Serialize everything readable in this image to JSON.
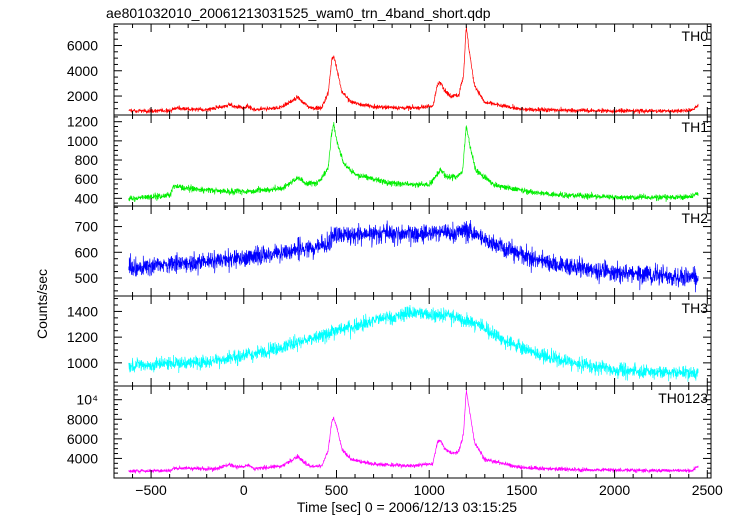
{
  "chart_data": {
    "type": "line",
    "title": "ae801032010_20061213031525_wam0_trn_4band_short.qdp",
    "xlabel": "Time [sec] 0 = 2006/12/13 03:15:25",
    "ylabel": "Counts/sec",
    "xlim": [
      -700,
      2520
    ],
    "xticks": [
      -500,
      0,
      500,
      1000,
      1500,
      2000,
      2500
    ],
    "x_start": -620,
    "x_end": 2450,
    "grid": false,
    "panels": [
      {
        "name": "TH0",
        "color": "#ff0000",
        "ylim": [
          500,
          7700
        ],
        "yticks": [
          2000,
          4000,
          6000
        ],
        "ytick_labels": [
          "2000",
          "4000",
          "6000"
        ],
        "noise": 120,
        "profile": [
          [
            -620,
            800
          ],
          [
            -400,
            850
          ],
          [
            -360,
            1050
          ],
          [
            -200,
            900
          ],
          [
            -80,
            1300
          ],
          [
            -40,
            1150
          ],
          [
            0,
            1050
          ],
          [
            20,
            1200
          ],
          [
            60,
            900
          ],
          [
            200,
            1100
          ],
          [
            260,
            1600
          ],
          [
            290,
            1900
          ],
          [
            320,
            1500
          ],
          [
            360,
            1050
          ],
          [
            420,
            1050
          ],
          [
            455,
            2200
          ],
          [
            475,
            4900
          ],
          [
            485,
            5100
          ],
          [
            500,
            4300
          ],
          [
            530,
            2300
          ],
          [
            580,
            1500
          ],
          [
            700,
            1150
          ],
          [
            900,
            1050
          ],
          [
            1020,
            1200
          ],
          [
            1045,
            2900
          ],
          [
            1060,
            3100
          ],
          [
            1085,
            2400
          ],
          [
            1120,
            1950
          ],
          [
            1160,
            2100
          ],
          [
            1185,
            3600
          ],
          [
            1200,
            7500
          ],
          [
            1215,
            5700
          ],
          [
            1245,
            2800
          ],
          [
            1300,
            1500
          ],
          [
            1500,
            950
          ],
          [
            1800,
            850
          ],
          [
            2200,
            820
          ],
          [
            2420,
            850
          ],
          [
            2450,
            1300
          ]
        ]
      },
      {
        "name": "TH1",
        "color": "#00ee00",
        "ylim": [
          320,
          1270
        ],
        "yticks": [
          400,
          600,
          800,
          1000,
          1200
        ],
        "ytick_labels": [
          "400",
          "600",
          "800",
          "1000",
          "1200"
        ],
        "noise": 22,
        "profile": [
          [
            -620,
            400
          ],
          [
            -400,
            430
          ],
          [
            -380,
            530
          ],
          [
            -300,
            500
          ],
          [
            -100,
            470
          ],
          [
            0,
            470
          ],
          [
            200,
            500
          ],
          [
            260,
            570
          ],
          [
            290,
            620
          ],
          [
            330,
            560
          ],
          [
            400,
            560
          ],
          [
            455,
            720
          ],
          [
            475,
            1100
          ],
          [
            485,
            1170
          ],
          [
            500,
            1010
          ],
          [
            540,
            760
          ],
          [
            600,
            650
          ],
          [
            800,
            560
          ],
          [
            1000,
            540
          ],
          [
            1040,
            640
          ],
          [
            1060,
            700
          ],
          [
            1090,
            630
          ],
          [
            1150,
            620
          ],
          [
            1180,
            680
          ],
          [
            1200,
            1160
          ],
          [
            1215,
            990
          ],
          [
            1250,
            700
          ],
          [
            1350,
            540
          ],
          [
            1600,
            450
          ],
          [
            2000,
            410
          ],
          [
            2400,
            410
          ],
          [
            2450,
            450
          ]
        ]
      },
      {
        "name": "TH2",
        "color": "#0000ff",
        "ylim": [
          430,
          780
        ],
        "yticks": [
          500,
          600,
          700
        ],
        "ytick_labels": [
          "500",
          "600",
          "700"
        ],
        "noise": 26,
        "profile": [
          [
            -620,
            535
          ],
          [
            -400,
            555
          ],
          [
            -200,
            565
          ],
          [
            0,
            575
          ],
          [
            200,
            600
          ],
          [
            400,
            620
          ],
          [
            460,
            640
          ],
          [
            480,
            665
          ],
          [
            700,
            670
          ],
          [
            900,
            672
          ],
          [
            1100,
            675
          ],
          [
            1200,
            685
          ],
          [
            1300,
            650
          ],
          [
            1500,
            590
          ],
          [
            1700,
            550
          ],
          [
            2000,
            520
          ],
          [
            2300,
            505
          ],
          [
            2450,
            500
          ]
        ]
      },
      {
        "name": "TH3",
        "color": "#00ffff",
        "ylim": [
          820,
          1520
        ],
        "yticks": [
          1000,
          1200,
          1400
        ],
        "ytick_labels": [
          "1000",
          "1200",
          "1400"
        ],
        "noise": 38,
        "profile": [
          [
            -620,
            980
          ],
          [
            -400,
            990
          ],
          [
            -200,
            1010
          ],
          [
            0,
            1050
          ],
          [
            200,
            1120
          ],
          [
            400,
            1200
          ],
          [
            600,
            1290
          ],
          [
            800,
            1360
          ],
          [
            950,
            1390
          ],
          [
            1100,
            1370
          ],
          [
            1250,
            1310
          ],
          [
            1400,
            1180
          ],
          [
            1600,
            1060
          ],
          [
            1800,
            990
          ],
          [
            2000,
            950
          ],
          [
            2200,
            930
          ],
          [
            2450,
            920
          ]
        ]
      },
      {
        "name": "TH0123",
        "color": "#ff00ff",
        "ylim": [
          2000,
          11400
        ],
        "yticks": [
          4000,
          6000,
          8000,
          10000
        ],
        "ytick_labels": [
          "4000",
          "6000",
          "8000",
          "10⁴"
        ],
        "noise": 140,
        "profile": [
          [
            -620,
            2700
          ],
          [
            -400,
            2750
          ],
          [
            -370,
            3000
          ],
          [
            -150,
            2950
          ],
          [
            -80,
            3350
          ],
          [
            -40,
            3200
          ],
          [
            0,
            3100
          ],
          [
            20,
            3300
          ],
          [
            60,
            2950
          ],
          [
            200,
            3200
          ],
          [
            260,
            3800
          ],
          [
            290,
            4200
          ],
          [
            320,
            3700
          ],
          [
            360,
            3200
          ],
          [
            420,
            3200
          ],
          [
            455,
            4800
          ],
          [
            475,
            7800
          ],
          [
            485,
            8200
          ],
          [
            500,
            7300
          ],
          [
            530,
            4900
          ],
          [
            580,
            3900
          ],
          [
            700,
            3400
          ],
          [
            900,
            3250
          ],
          [
            1020,
            3500
          ],
          [
            1045,
            5700
          ],
          [
            1060,
            5900
          ],
          [
            1085,
            5000
          ],
          [
            1120,
            4500
          ],
          [
            1160,
            4700
          ],
          [
            1185,
            6500
          ],
          [
            1200,
            11000
          ],
          [
            1215,
            9200
          ],
          [
            1245,
            5600
          ],
          [
            1300,
            3900
          ],
          [
            1500,
            3050
          ],
          [
            1800,
            2850
          ],
          [
            2200,
            2780
          ],
          [
            2420,
            2780
          ],
          [
            2450,
            3200
          ]
        ]
      }
    ]
  }
}
